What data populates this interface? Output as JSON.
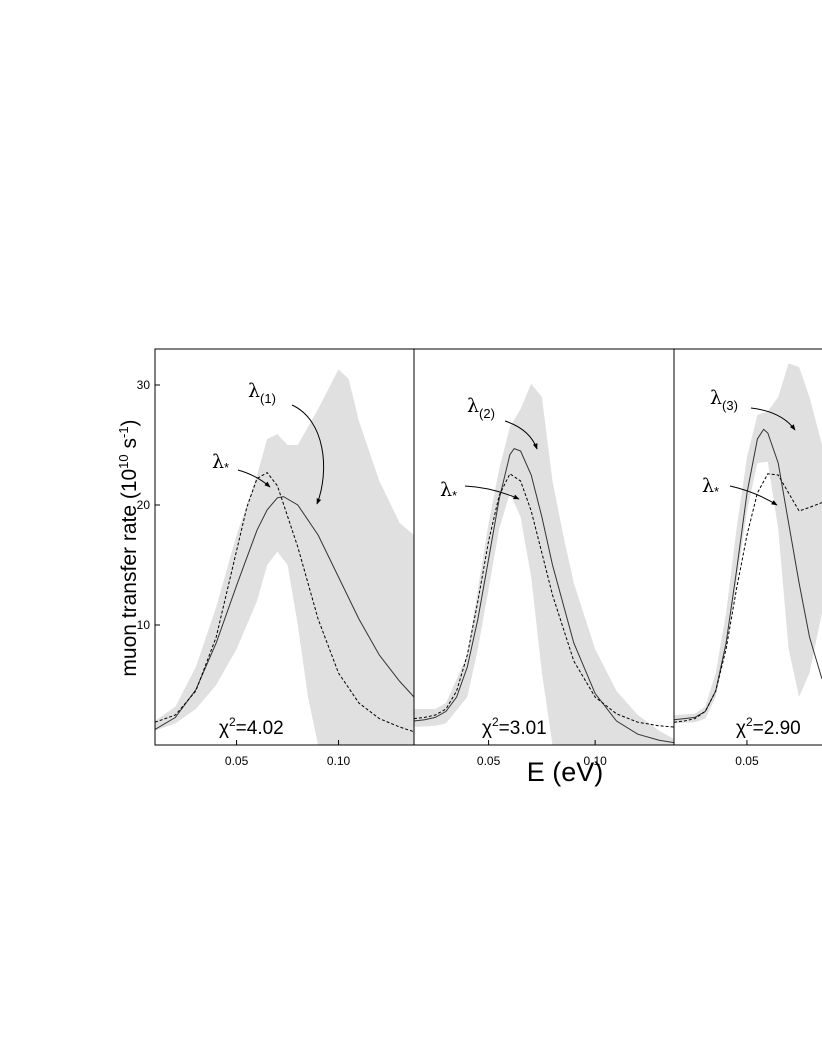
{
  "chart_data": {
    "type": "line",
    "ylabel": "muon transfer rate (10",
    "ylabel_exp1": "10",
    "ylabel_unit": " s",
    "ylabel_exp2": "-1",
    "ylabel_close": ")",
    "xlabel": "E (eV)",
    "colors": {
      "band": "#e0e0e0",
      "axes": "#000000",
      "line": "#333333"
    },
    "ylim": [
      0,
      33
    ],
    "yticks": [
      10,
      20,
      30
    ],
    "yticklabels": [
      "10",
      "20",
      "30"
    ],
    "panels": [
      {
        "xlim": [
          0.01,
          0.137
        ],
        "xticks": [
          0.05,
          0.1
        ],
        "xticklabels": [
          "0.05",
          "0.10"
        ],
        "chi2_label": "χ",
        "chi2_exp": "2",
        "chi2_value": "=4.02",
        "band_upper": [
          [
            0.01,
            2.0
          ],
          [
            0.02,
            3.2
          ],
          [
            0.03,
            6.5
          ],
          [
            0.04,
            11.5
          ],
          [
            0.05,
            17.5
          ],
          [
            0.06,
            22.5
          ],
          [
            0.065,
            25.5
          ],
          [
            0.07,
            25.9
          ],
          [
            0.075,
            25.0
          ],
          [
            0.08,
            25.0
          ],
          [
            0.09,
            28.0
          ],
          [
            0.1,
            31.3
          ],
          [
            0.105,
            30.5
          ],
          [
            0.11,
            27.0
          ],
          [
            0.12,
            22.0
          ],
          [
            0.13,
            18.5
          ],
          [
            0.137,
            17.5
          ]
        ],
        "band_lower": [
          [
            0.01,
            1.2
          ],
          [
            0.02,
            1.8
          ],
          [
            0.03,
            3.0
          ],
          [
            0.04,
            5.0
          ],
          [
            0.05,
            8.0
          ],
          [
            0.06,
            12.0
          ],
          [
            0.065,
            15.0
          ],
          [
            0.07,
            16.1
          ],
          [
            0.075,
            15.0
          ],
          [
            0.08,
            10.0
          ],
          [
            0.085,
            4.0
          ],
          [
            0.09,
            0.0
          ],
          [
            0.137,
            0.0
          ]
        ],
        "series": [
          {
            "name": "λ(1)",
            "style": "solid",
            "x": [
              0.01,
              0.02,
              0.03,
              0.04,
              0.05,
              0.06,
              0.065,
              0.07,
              0.073,
              0.08,
              0.09,
              0.1,
              0.11,
              0.12,
              0.13,
              0.137
            ],
            "y": [
              1.3,
              2.3,
              4.6,
              8.5,
              13.3,
              17.9,
              19.6,
              20.6,
              20.7,
              20.0,
              17.5,
              14.0,
              10.5,
              7.5,
              5.3,
              4.0
            ]
          },
          {
            "name": "λ*",
            "style": "dashed",
            "x": [
              0.01,
              0.02,
              0.03,
              0.04,
              0.05,
              0.055,
              0.06,
              0.065,
              0.07,
              0.08,
              0.09,
              0.1,
              0.11,
              0.12,
              0.13,
              0.137
            ],
            "y": [
              1.9,
              2.5,
              4.5,
              9.0,
              16.2,
              19.8,
              22.2,
              22.7,
              21.6,
              16.5,
              10.5,
              6.0,
              3.5,
              2.2,
              1.5,
              1.1
            ]
          }
        ],
        "annotations": [
          {
            "symbol": "λ",
            "sub": "(1)"
          },
          {
            "symbol": "λ",
            "sub": "*"
          }
        ]
      },
      {
        "xlim": [
          0.015,
          0.137
        ],
        "xticks": [
          0.05,
          0.1
        ],
        "xticklabels": [
          "0.05",
          "0.10"
        ],
        "chi2_label": "χ",
        "chi2_exp": "2",
        "chi2_value": "=3.01",
        "band_upper": [
          [
            0.015,
            3.0
          ],
          [
            0.025,
            3.0
          ],
          [
            0.03,
            3.5
          ],
          [
            0.04,
            7.5
          ],
          [
            0.045,
            13.0
          ],
          [
            0.05,
            18.5
          ],
          [
            0.055,
            23.0
          ],
          [
            0.06,
            26.5
          ],
          [
            0.065,
            28.0
          ],
          [
            0.07,
            30.1
          ],
          [
            0.075,
            29.0
          ],
          [
            0.08,
            22.0
          ],
          [
            0.085,
            17.5
          ],
          [
            0.09,
            13.5
          ],
          [
            0.1,
            8.0
          ],
          [
            0.11,
            4.5
          ],
          [
            0.12,
            2.5
          ],
          [
            0.13,
            1.2
          ],
          [
            0.137,
            0.5
          ]
        ],
        "band_lower": [
          [
            0.015,
            1.5
          ],
          [
            0.025,
            1.6
          ],
          [
            0.03,
            1.8
          ],
          [
            0.04,
            4.0
          ],
          [
            0.045,
            8.0
          ],
          [
            0.05,
            13.0
          ],
          [
            0.055,
            18.0
          ],
          [
            0.06,
            21.0
          ],
          [
            0.065,
            19.0
          ],
          [
            0.07,
            14.0
          ],
          [
            0.075,
            6.0
          ],
          [
            0.08,
            0.0
          ],
          [
            0.137,
            0.0
          ]
        ],
        "series": [
          {
            "name": "λ(2)",
            "style": "solid",
            "x": [
              0.015,
              0.02,
              0.025,
              0.03,
              0.035,
              0.04,
              0.045,
              0.05,
              0.055,
              0.06,
              0.062,
              0.065,
              0.07,
              0.075,
              0.08,
              0.09,
              0.1,
              0.11,
              0.12,
              0.13,
              0.137
            ],
            "y": [
              2.0,
              2.1,
              2.3,
              2.8,
              4.0,
              6.5,
              10.5,
              15.5,
              20.5,
              24.2,
              24.7,
              24.5,
              22.5,
              19.0,
              15.0,
              8.5,
              4.3,
              2.0,
              0.9,
              0.4,
              0.2
            ],
            "annotation_point": [
              0.061,
              24.7
            ]
          },
          {
            "name": "λ*",
            "style": "dashed",
            "x": [
              0.015,
              0.02,
              0.025,
              0.03,
              0.035,
              0.04,
              0.045,
              0.05,
              0.055,
              0.06,
              0.065,
              0.07,
              0.075,
              0.08,
              0.09,
              0.1,
              0.11,
              0.12,
              0.13,
              0.137
            ],
            "y": [
              2.2,
              2.3,
              2.5,
              3.0,
              4.5,
              7.5,
              12.0,
              17.0,
              20.8,
              22.6,
              22.0,
              19.5,
              16.0,
              12.5,
              7.0,
              4.0,
              2.6,
              1.9,
              1.6,
              1.5
            ]
          }
        ],
        "annotations": [
          {
            "symbol": "λ",
            "sub": "(2)"
          },
          {
            "symbol": "λ",
            "sub": "*"
          }
        ]
      },
      {
        "xlim": [
          0.015,
          0.086
        ],
        "xticks": [
          0.05
        ],
        "xticklabels": [
          "0.05"
        ],
        "chi2_label": "χ",
        "chi2_exp": "2",
        "chi2_value": "=2.90",
        "band_upper": [
          [
            0.015,
            2.5
          ],
          [
            0.025,
            2.6
          ],
          [
            0.03,
            3.2
          ],
          [
            0.035,
            6.0
          ],
          [
            0.04,
            11.0
          ],
          [
            0.045,
            18.0
          ],
          [
            0.05,
            24.0
          ],
          [
            0.055,
            27.5
          ],
          [
            0.06,
            27.8
          ],
          [
            0.065,
            29.0
          ],
          [
            0.07,
            31.8
          ],
          [
            0.075,
            31.5
          ],
          [
            0.08,
            29.0
          ],
          [
            0.086,
            25.0
          ]
        ],
        "band_lower": [
          [
            0.015,
            1.8
          ],
          [
            0.025,
            1.9
          ],
          [
            0.03,
            2.2
          ],
          [
            0.035,
            4.0
          ],
          [
            0.04,
            8.0
          ],
          [
            0.045,
            13.5
          ],
          [
            0.05,
            19.5
          ],
          [
            0.055,
            23.5
          ],
          [
            0.06,
            23.6
          ],
          [
            0.065,
            18.0
          ],
          [
            0.07,
            8.0
          ],
          [
            0.075,
            4.0
          ],
          [
            0.08,
            6.0
          ],
          [
            0.086,
            11.0
          ]
        ],
        "series": [
          {
            "name": "λ(3)",
            "style": "solid",
            "x": [
              0.015,
              0.02,
              0.025,
              0.03,
              0.035,
              0.04,
              0.045,
              0.05,
              0.055,
              0.058,
              0.06,
              0.065,
              0.07,
              0.075,
              0.08,
              0.086
            ],
            "y": [
              2.1,
              2.2,
              2.3,
              2.8,
              4.5,
              8.5,
              14.5,
              21.0,
              25.5,
              26.3,
              26.0,
              23.5,
              18.5,
              13.5,
              9.0,
              5.5
            ],
            "annotation_point": [
              0.058,
              26.3
            ]
          },
          {
            "name": "λ*",
            "style": "dashed",
            "x": [
              0.015,
              0.02,
              0.025,
              0.03,
              0.035,
              0.04,
              0.045,
              0.05,
              0.055,
              0.06,
              0.065,
              0.07,
              0.075,
              0.08,
              0.086
            ],
            "y": [
              1.9,
              2.0,
              2.2,
              2.8,
              4.5,
              8.0,
              13.0,
              17.5,
              21.0,
              22.6,
              22.5,
              21.0,
              19.5,
              19.8,
              20.2
            ]
          }
        ],
        "annotations": [
          {
            "symbol": "λ",
            "sub": "(3)"
          },
          {
            "symbol": "λ",
            "sub": "*"
          }
        ]
      }
    ]
  }
}
